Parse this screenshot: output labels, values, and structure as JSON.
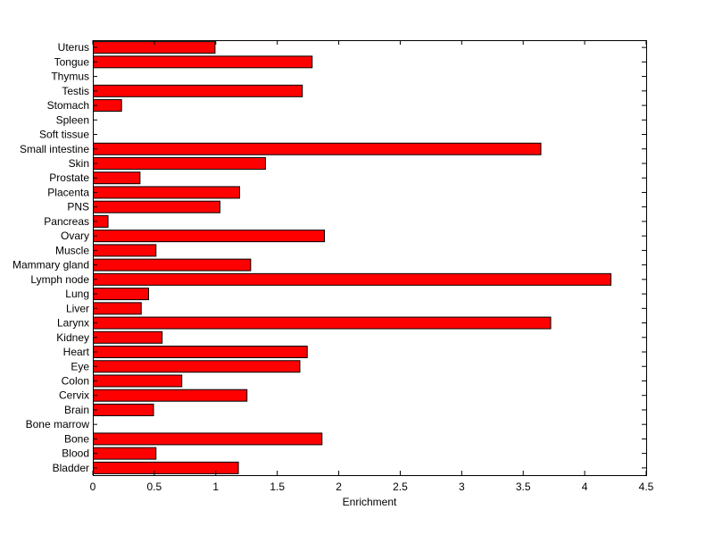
{
  "chart_data": {
    "type": "bar",
    "orientation": "horizontal",
    "title": "",
    "xlabel": "Enrichment",
    "ylabel": "",
    "xlim": [
      0,
      4.5
    ],
    "xticks": [
      0,
      0.5,
      1,
      1.5,
      2,
      2.5,
      3,
      3.5,
      4,
      4.5
    ],
    "x_tick_labels": [
      "0",
      "0.5",
      "1",
      "1.5",
      "2",
      "2.5",
      "3",
      "3.5",
      "4",
      "4.5"
    ],
    "grid": false,
    "legend": "none",
    "bar_color": "#ff0000",
    "bar_edge_color": "#000000",
    "categories": [
      "Uterus",
      "Tongue",
      "Thymus",
      "Testis",
      "Stomach",
      "Spleen",
      "Soft tissue",
      "Small intestine",
      "Skin",
      "Prostate",
      "Placenta",
      "PNS",
      "Pancreas",
      "Ovary",
      "Muscle",
      "Mammary gland",
      "Lymph node",
      "Lung",
      "Liver",
      "Larynx",
      "Kidney",
      "Heart",
      "Eye",
      "Colon",
      "Cervix",
      "Brain",
      "Bone marrow",
      "Bone",
      "Blood",
      "Bladder"
    ],
    "values": [
      0.99,
      1.78,
      0,
      1.7,
      0.23,
      0,
      0,
      3.64,
      1.4,
      0.38,
      1.19,
      1.03,
      0.12,
      1.88,
      0.51,
      1.28,
      4.21,
      0.45,
      0.39,
      3.72,
      0.56,
      1.74,
      1.68,
      0.72,
      1.25,
      0.49,
      0,
      1.86,
      0.51,
      1.18
    ]
  }
}
